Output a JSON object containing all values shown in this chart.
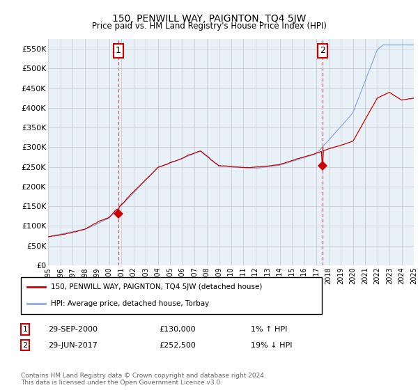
{
  "title": "150, PENWILL WAY, PAIGNTON, TQ4 5JW",
  "subtitle": "Price paid vs. HM Land Registry's House Price Index (HPI)",
  "ylabel_ticks": [
    "£0",
    "£50K",
    "£100K",
    "£150K",
    "£200K",
    "£250K",
    "£300K",
    "£350K",
    "£400K",
    "£450K",
    "£500K",
    "£550K"
  ],
  "ytick_values": [
    0,
    50000,
    100000,
    150000,
    200000,
    250000,
    300000,
    350000,
    400000,
    450000,
    500000,
    550000
  ],
  "ylim": [
    0,
    575000
  ],
  "x_start_year": 1995,
  "x_end_year": 2025,
  "xtick_years": [
    1995,
    1996,
    1997,
    1998,
    1999,
    2000,
    2001,
    2002,
    2003,
    2004,
    2005,
    2006,
    2007,
    2008,
    2009,
    2010,
    2011,
    2012,
    2013,
    2014,
    2015,
    2016,
    2017,
    2018,
    2019,
    2020,
    2021,
    2022,
    2023,
    2024,
    2025
  ],
  "sale1_x": 2000.75,
  "sale1_y": 130000,
  "sale1_label": "1",
  "sale1_date": "29-SEP-2000",
  "sale1_price": "£130,000",
  "sale1_hpi": "1% ↑ HPI",
  "sale2_x": 2017.5,
  "sale2_y": 252500,
  "sale2_label": "2",
  "sale2_date": "29-JUN-2017",
  "sale2_price": "£252,500",
  "sale2_hpi": "19% ↓ HPI",
  "legend_line1": "150, PENWILL WAY, PAIGNTON, TQ4 5JW (detached house)",
  "legend_line2": "HPI: Average price, detached house, Torbay",
  "footnote": "Contains HM Land Registry data © Crown copyright and database right 2024.\nThis data is licensed under the Open Government Licence v3.0.",
  "red_color": "#cc0000",
  "blue_color": "#88aadd",
  "plot_bg_color": "#e8f0f8",
  "bg_color": "#ffffff",
  "grid_color": "#bbbbbb",
  "annotation_box_color": "#cc0000"
}
